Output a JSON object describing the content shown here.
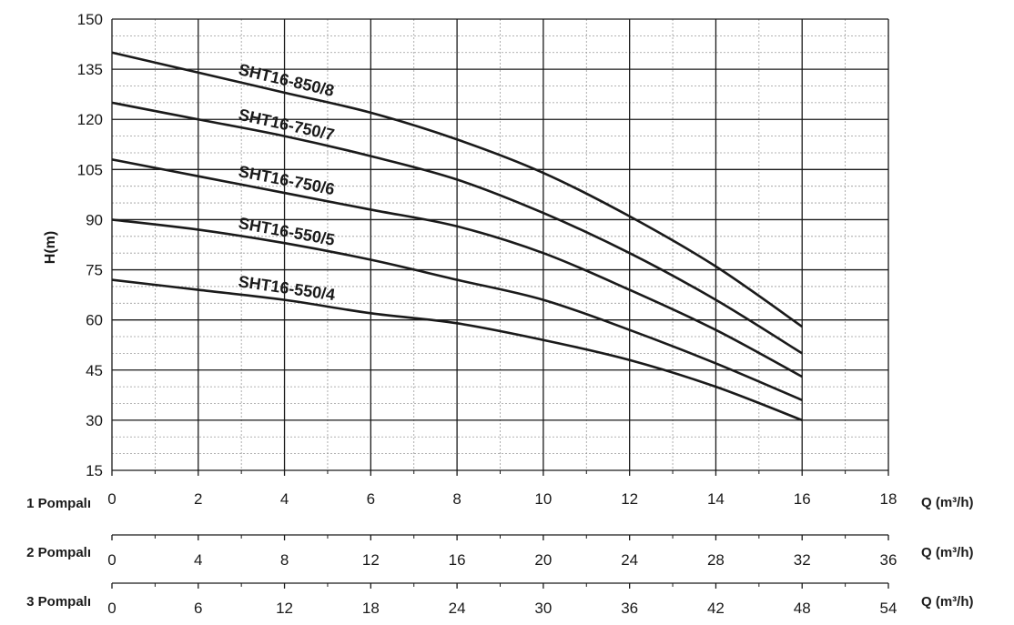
{
  "chart_data": {
    "type": "line",
    "ylabel": "H(m)",
    "ylim": [
      15,
      150
    ],
    "y_ticks": [
      15,
      30,
      45,
      60,
      75,
      90,
      105,
      120,
      135,
      150
    ],
    "xlim": [
      0,
      18
    ],
    "grid": true,
    "x_axes": [
      {
        "label": "1 Pompalı",
        "unit": "Q (m³/h)",
        "ticks": [
          "0",
          "2",
          "4",
          "6",
          "8",
          "10",
          "12",
          "14",
          "16",
          "18"
        ]
      },
      {
        "label": "2 Pompalı",
        "unit": "Q (m³/h)",
        "ticks": [
          "0",
          "4",
          "8",
          "12",
          "16",
          "20",
          "24",
          "28",
          "32",
          "36"
        ]
      },
      {
        "label": "3 Pompalı",
        "unit": "Q (m³/h)",
        "ticks": [
          "0",
          "6",
          "12",
          "18",
          "24",
          "30",
          "36",
          "42",
          "48",
          "54"
        ]
      }
    ],
    "series": [
      {
        "name": "SHT16-850/8",
        "x": [
          0,
          2,
          4,
          6,
          8,
          10,
          12,
          14,
          16
        ],
        "y": [
          140,
          134,
          128,
          122,
          114,
          104,
          91,
          76,
          58
        ]
      },
      {
        "name": "SHT16-750/7",
        "x": [
          0,
          2,
          4,
          6,
          8,
          10,
          12,
          14,
          16
        ],
        "y": [
          125,
          120,
          115,
          109,
          102,
          92,
          80,
          66,
          50
        ]
      },
      {
        "name": "SHT16-750/6",
        "x": [
          0,
          2,
          4,
          6,
          8,
          10,
          12,
          14,
          16
        ],
        "y": [
          108,
          103,
          98,
          93,
          88,
          80,
          69,
          57,
          43
        ]
      },
      {
        "name": "SHT16-550/5",
        "x": [
          0,
          2,
          4,
          6,
          8,
          10,
          12,
          14,
          16
        ],
        "y": [
          90,
          87,
          83,
          78,
          72,
          66,
          57,
          47,
          36
        ]
      },
      {
        "name": "SHT16-550/4",
        "x": [
          0,
          2,
          4,
          6,
          8,
          10,
          12,
          14,
          16
        ],
        "y": [
          72,
          69,
          66,
          62,
          59,
          54,
          48,
          40,
          30
        ]
      }
    ]
  }
}
